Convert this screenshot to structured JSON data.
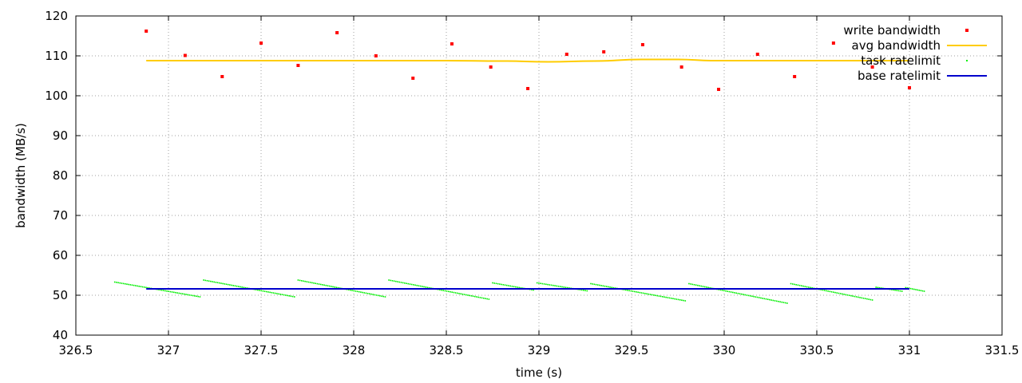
{
  "chart_data": {
    "type": "scatter",
    "xlabel": "time (s)",
    "ylabel": "bandwidth (MB/s)",
    "xlim": [
      326.5,
      331.5
    ],
    "ylim": [
      40,
      120
    ],
    "x_ticks": [
      "326.5",
      "327",
      "327.5",
      "328",
      "328.5",
      "329",
      "329.5",
      "330",
      "330.5",
      "331",
      "331.5"
    ],
    "y_ticks": [
      "40",
      "50",
      "60",
      "70",
      "80",
      "90",
      "100",
      "110",
      "120"
    ],
    "grid": true,
    "legend_position": "top-right",
    "colors": {
      "write_bandwidth": "#ff0000",
      "avg_bandwidth": "#ffcc00",
      "task_ratelimit": "#00ee00",
      "base_ratelimit": "#0000cc"
    },
    "series": [
      {
        "name": "write bandwidth",
        "style": "points",
        "x": [
          326.88,
          327.09,
          327.29,
          327.5,
          327.7,
          327.91,
          328.12,
          328.32,
          328.53,
          328.74,
          328.94,
          329.15,
          329.35,
          329.56,
          329.77,
          329.97,
          330.18,
          330.38,
          330.59,
          330.8,
          331.0
        ],
        "y": [
          116.2,
          110.1,
          104.8,
          113.2,
          107.6,
          115.8,
          110.0,
          104.4,
          113.0,
          107.2,
          101.8,
          110.4,
          111.0,
          112.8,
          107.2,
          101.6,
          110.4,
          104.8,
          113.2,
          107.2,
          102.0
        ]
      },
      {
        "name": "avg bandwidth",
        "style": "line",
        "x": [
          326.88,
          327.5,
          328.0,
          328.5,
          328.8,
          329.05,
          329.3,
          329.55,
          329.75,
          329.95,
          330.2,
          330.5,
          330.8,
          331.0
        ],
        "y": [
          108.8,
          108.8,
          108.8,
          108.8,
          108.7,
          108.5,
          108.7,
          109.1,
          109.1,
          108.8,
          108.8,
          108.8,
          108.8,
          108.8
        ]
      },
      {
        "name": "task ratelimit",
        "style": "segments",
        "segments": [
          {
            "x": [
              326.71,
              327.17
            ],
            "y": [
              53.3,
              49.6
            ]
          },
          {
            "x": [
              327.19,
              327.68
            ],
            "y": [
              53.8,
              49.6
            ]
          },
          {
            "x": [
              327.7,
              328.17
            ],
            "y": [
              53.8,
              49.6
            ]
          },
          {
            "x": [
              328.19,
              328.73
            ],
            "y": [
              53.8,
              49.0
            ]
          },
          {
            "x": [
              328.75,
              328.97
            ],
            "y": [
              53.1,
              51.3
            ]
          },
          {
            "x": [
              328.99,
              329.26
            ],
            "y": [
              53.1,
              51.1
            ]
          },
          {
            "x": [
              329.28,
              329.79
            ],
            "y": [
              52.9,
              48.6
            ]
          },
          {
            "x": [
              329.81,
              330.34
            ],
            "y": [
              52.9,
              48.0
            ]
          },
          {
            "x": [
              330.36,
              330.8
            ],
            "y": [
              52.9,
              48.8
            ]
          },
          {
            "x": [
              330.82,
              330.96
            ],
            "y": [
              52.0,
              51.0
            ]
          },
          {
            "x": [
              330.98,
              331.08
            ],
            "y": [
              51.9,
              51.0
            ]
          }
        ]
      },
      {
        "name": "base ratelimit",
        "style": "line",
        "x": [
          326.88,
          331.0
        ],
        "y": [
          51.6,
          51.6
        ]
      }
    ]
  }
}
